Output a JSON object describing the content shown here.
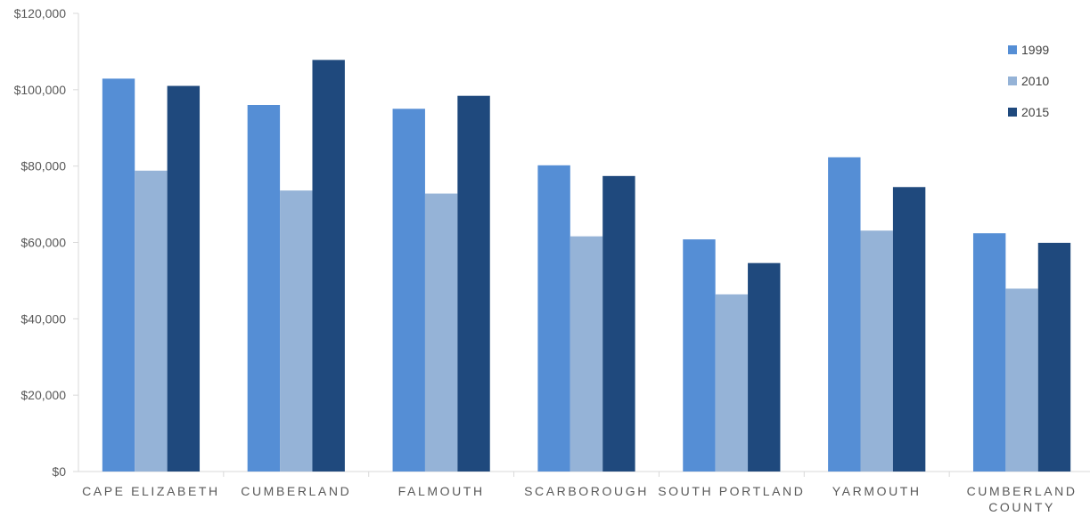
{
  "chart_data": {
    "type": "bar",
    "title": "",
    "xlabel": "",
    "ylabel": "",
    "categories": [
      [
        "CAPE ELIZABETH"
      ],
      [
        "CUMBERLAND"
      ],
      [
        "FALMOUTH"
      ],
      [
        "SCARBOROUGH"
      ],
      [
        "SOUTH PORTLAND"
      ],
      [
        "YARMOUTH"
      ],
      [
        "CUMBERLAND",
        "COUNTY"
      ]
    ],
    "series": [
      {
        "name": "1999",
        "color": "#558ED5",
        "values": [
          102900,
          96000,
          95000,
          80200,
          60800,
          82300,
          62400
        ]
      },
      {
        "name": "2010",
        "color": "#95B3D7",
        "values": [
          78800,
          73600,
          72800,
          61600,
          46400,
          63100,
          47900
        ]
      },
      {
        "name": "2015",
        "color": "#1F497D",
        "values": [
          101000,
          107800,
          98400,
          77400,
          54600,
          74500,
          59900
        ]
      }
    ],
    "ylim": [
      0,
      120000
    ],
    "yticks": [
      0,
      20000,
      40000,
      60000,
      80000,
      100000,
      120000
    ],
    "ytick_labels": [
      "$0",
      "$20,000",
      "$40,000",
      "$60,000",
      "$80,000",
      "$100,000",
      "$120,000"
    ],
    "grid": false,
    "legend_position": "top-right"
  }
}
